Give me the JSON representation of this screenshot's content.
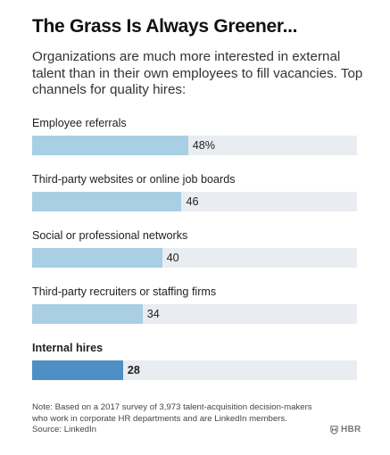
{
  "title": "The Grass Is Always Greener...",
  "subtitle": "Organizations are much more interested in external talent than in their own employees to fill vacancies. Top channels for quality hires:",
  "chart_data": {
    "type": "bar",
    "orientation": "horizontal",
    "categories": [
      "Employee referrals",
      "Third-party websites or online job boards",
      "Social or professional networks",
      "Third-party recruiters or staffing firms",
      "Internal hires"
    ],
    "values": [
      48,
      46,
      40,
      34,
      28
    ],
    "value_labels": [
      "48%",
      "46",
      "40",
      "34",
      "28"
    ],
    "highlighted_category": "Internal hires",
    "xlim": [
      0,
      100
    ],
    "grid": false,
    "legend": "none",
    "colors": {
      "bar": "#a8cfe3",
      "highlight": "#4d8fc5",
      "track": "#e9ecf0"
    }
  },
  "note": {
    "line1": "Note: Based on a 2017 survey of 3,973 talent-acquisition decision-makers",
    "line2": "who work in corporate HR departments and are LinkedIn members.",
    "source": "Source: LinkedIn"
  },
  "logo": {
    "icon": "hbr-shield-icon",
    "text": "HBR"
  }
}
